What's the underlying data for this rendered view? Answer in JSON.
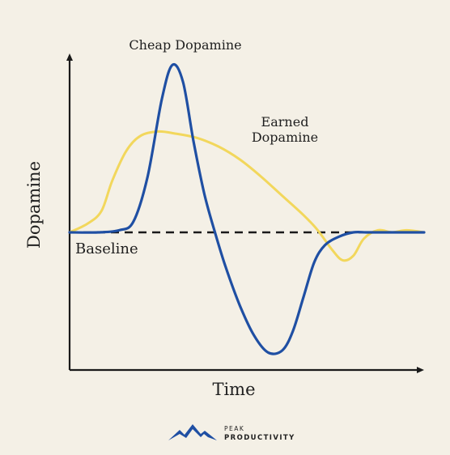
{
  "chart_data": {
    "type": "line",
    "title": "",
    "xlabel": "Time",
    "ylabel": "Dopamine",
    "grid": false,
    "x_range": [
      0,
      100
    ],
    "y_range": [
      -60,
      100
    ],
    "baseline": {
      "label": "Baseline",
      "value": 0
    },
    "series": [
      {
        "name": "Cheap Dopamine",
        "color": "#1f4fa3",
        "x": [
          0,
          8,
          14,
          18,
          22,
          26,
          29,
          32,
          35,
          38,
          41,
          44,
          48,
          52,
          56,
          60,
          63,
          66,
          69,
          72,
          76,
          80,
          84,
          88,
          92,
          96,
          100
        ],
        "y": [
          0,
          0,
          1,
          5,
          26,
          62,
          78,
          70,
          42,
          18,
          0,
          -16,
          -34,
          -48,
          -56,
          -55,
          -46,
          -30,
          -14,
          -6,
          -2,
          0,
          0,
          0,
          0,
          0,
          0
        ]
      },
      {
        "name": "Earned Dopamine",
        "color": "#f2d75c",
        "x": [
          0,
          5,
          9,
          12,
          16,
          20,
          25,
          30,
          36,
          42,
          48,
          54,
          60,
          66,
          70,
          74,
          77,
          80,
          83,
          87,
          91,
          95,
          100
        ],
        "y": [
          0,
          4,
          10,
          24,
          38,
          45,
          47,
          46,
          44,
          40,
          34,
          26,
          17,
          8,
          1,
          -8,
          -13,
          -11,
          -3,
          1,
          0,
          1,
          0
        ]
      }
    ],
    "annotations": [
      {
        "text": "Cheap Dopamine"
      },
      {
        "text": "Earned"
      },
      {
        "text": "Dopamine"
      }
    ]
  },
  "branding": {
    "logo_icon": "mountain-icon",
    "line1": "PEAK",
    "line2": "PRODUCTIVITY",
    "color": "#1f4fa3"
  }
}
